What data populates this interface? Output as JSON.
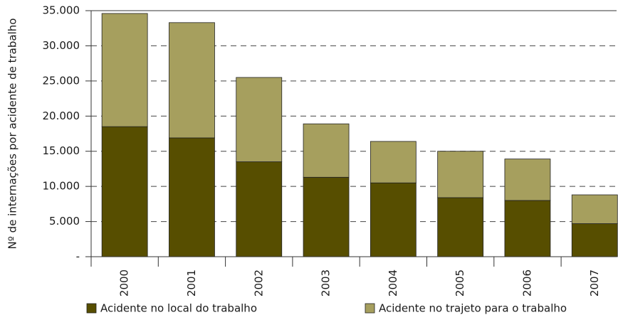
{
  "chart_data": {
    "type": "stacked_bar",
    "y_label": "Nº de internações por acidente de trabalho",
    "categories": [
      "2000",
      "2001",
      "2002",
      "2003",
      "2004",
      "2005",
      "2006",
      "2007"
    ],
    "series": [
      {
        "name": "Acidente no local do trabalho",
        "color": "#574e00",
        "values": [
          18500,
          16900,
          13500,
          11300,
          10500,
          8400,
          8000,
          4700
        ]
      },
      {
        "name": "Acidente no trajeto para o trabalho",
        "color": "#a69f5e",
        "values": [
          16100,
          16400,
          12000,
          7600,
          5900,
          6600,
          5900,
          4100
        ]
      }
    ],
    "ylim": [
      0,
      35000
    ],
    "yticks": [
      {
        "value": 0,
        "label": "-"
      },
      {
        "value": 5000,
        "label": "5.000"
      },
      {
        "value": 10000,
        "label": "10.000"
      },
      {
        "value": 15000,
        "label": "15.000"
      },
      {
        "value": 20000,
        "label": "20.000"
      },
      {
        "value": 25000,
        "label": "25.000"
      },
      {
        "value": 30000,
        "label": "30.000"
      },
      {
        "value": 35000,
        "label": "35.000"
      }
    ],
    "grid": true
  }
}
